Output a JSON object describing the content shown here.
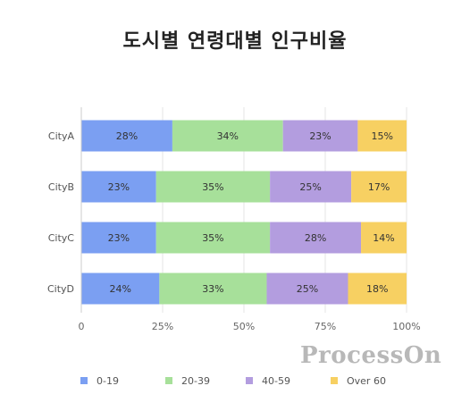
{
  "chart_data": {
    "type": "bar",
    "orientation": "horizontal",
    "stacked": true,
    "title": "도시별 연령대별 인구비율",
    "categories": [
      "CityA",
      "CityB",
      "CityC",
      "CityD"
    ],
    "series": [
      {
        "name": "0-19",
        "color": "#7b9ff2",
        "values": [
          28,
          23,
          23,
          24
        ]
      },
      {
        "name": "20-39",
        "color": "#a7e09a",
        "values": [
          34,
          35,
          35,
          33
        ]
      },
      {
        "name": "40-59",
        "color": "#b39ddf",
        "values": [
          23,
          25,
          28,
          25
        ]
      },
      {
        "name": "Over 60",
        "color": "#f7d062",
        "values": [
          15,
          17,
          14,
          18
        ]
      }
    ],
    "value_suffix": "%",
    "xlim": [
      0,
      100
    ],
    "x_ticks": [
      "0",
      "25%",
      "50%",
      "75%",
      "100%"
    ],
    "legend_position": "bottom",
    "grid": true
  },
  "watermark": "ProcessOn"
}
